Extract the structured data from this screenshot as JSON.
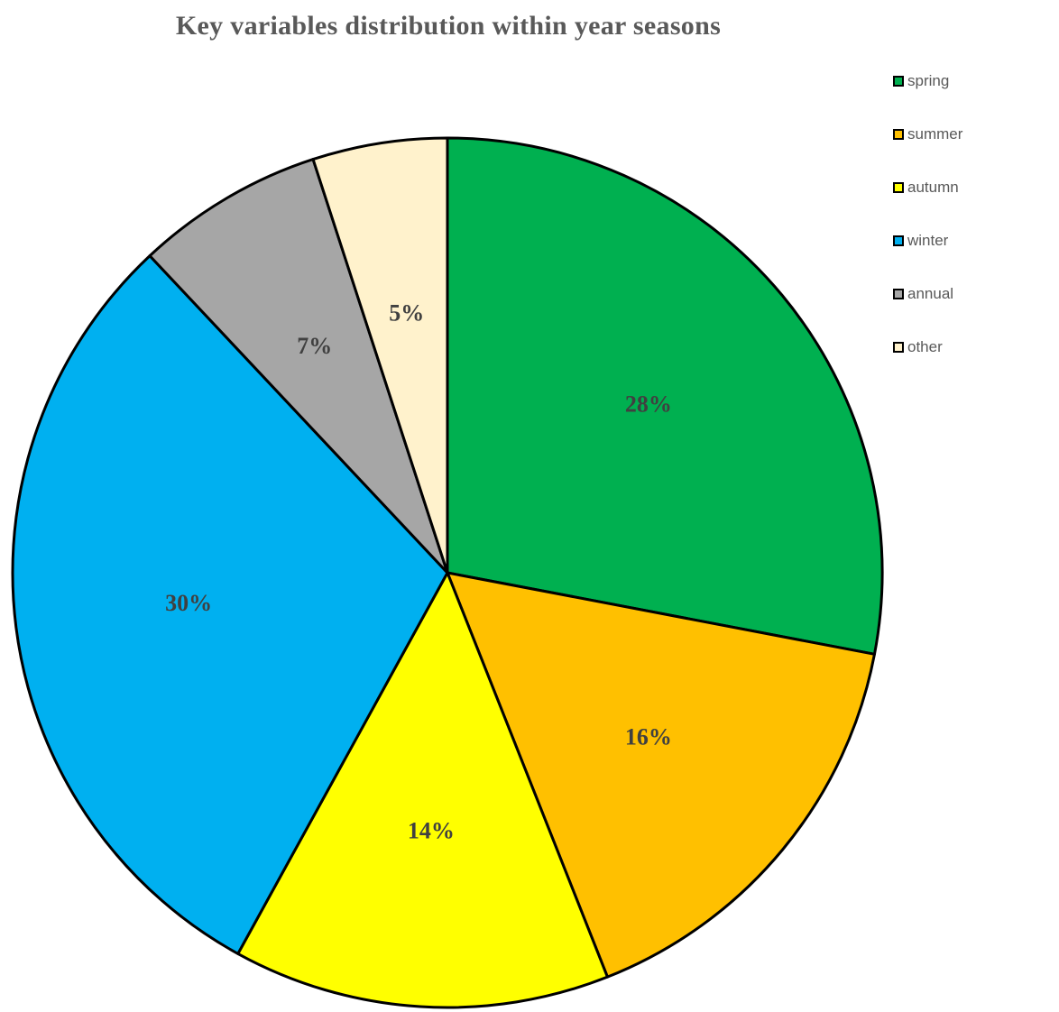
{
  "chart_data": {
    "type": "pie",
    "title": "Key variables distribution within year seasons",
    "start_angle_deg": 0,
    "direction": "clockwise",
    "slices": [
      {
        "name": "spring",
        "value": 28,
        "label": "28%",
        "color": "#00b050"
      },
      {
        "name": "summer",
        "value": 16,
        "label": "16%",
        "color": "#ffc000"
      },
      {
        "name": "autumn",
        "value": 14,
        "label": "14%",
        "color": "#ffff00"
      },
      {
        "name": "winter",
        "value": 30,
        "label": "30%",
        "color": "#00b0f0"
      },
      {
        "name": "annual",
        "value": 7,
        "label": "7%",
        "color": "#a6a6a6"
      },
      {
        "name": "other",
        "value": 5,
        "label": "5%",
        "color": "#fff2cc"
      }
    ],
    "legend_position": "top-right",
    "outline_color": "#000000"
  }
}
